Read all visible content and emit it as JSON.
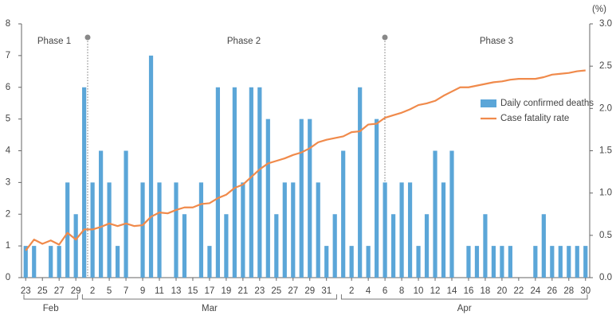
{
  "chart_data": {
    "type": "bar_line",
    "categories": [
      "23",
      null,
      "25",
      null,
      "27",
      null,
      "29",
      null,
      "2",
      null,
      "5",
      null,
      "7",
      null,
      "9",
      null,
      "11",
      null,
      "13",
      null,
      "15",
      null,
      "17",
      null,
      "19",
      null,
      "21",
      null,
      "23",
      null,
      "25",
      null,
      "27",
      null,
      "29",
      null,
      "31",
      null,
      null,
      "2",
      null,
      "4",
      null,
      "6",
      null,
      "8",
      null,
      "10",
      null,
      "12",
      null,
      "14",
      null,
      "16",
      null,
      "18",
      null,
      "20",
      null,
      "22",
      null,
      "24",
      null,
      "26",
      null,
      "28",
      null,
      "30"
    ],
    "x_groups": [
      {
        "label": "Feb",
        "size": 7
      },
      {
        "label": "Mar",
        "size": 31
      },
      {
        "label": "Apr",
        "size": 30
      }
    ],
    "series": [
      {
        "name": "Daily confirmed deaths",
        "type": "bar",
        "color": "#5ba6d8",
        "values": [
          1,
          1,
          0,
          1,
          1,
          3,
          2,
          6,
          3,
          4,
          3,
          1,
          4,
          0,
          3,
          7,
          3,
          0,
          3,
          2,
          0,
          3,
          1,
          6,
          2,
          6,
          3,
          6,
          6,
          5,
          2,
          3,
          3,
          5,
          5,
          3,
          1,
          2,
          4,
          1,
          6,
          1,
          5,
          3,
          2,
          3,
          3,
          1,
          2,
          4,
          3,
          4,
          0,
          1,
          1,
          2,
          1,
          1,
          1,
          0,
          0,
          1,
          2,
          1,
          1,
          1,
          1,
          1
        ]
      },
      {
        "name": "Case fatality rate",
        "type": "line",
        "axis": "y2",
        "color": "#f08a4b",
        "values": [
          0.32,
          0.45,
          0.4,
          0.44,
          0.39,
          0.53,
          0.45,
          0.57,
          0.57,
          0.6,
          0.64,
          0.61,
          0.64,
          0.61,
          0.62,
          0.72,
          0.77,
          0.76,
          0.8,
          0.83,
          0.83,
          0.87,
          0.88,
          0.94,
          0.98,
          1.06,
          1.1,
          1.19,
          1.28,
          1.35,
          1.38,
          1.41,
          1.45,
          1.48,
          1.53,
          1.6,
          1.63,
          1.65,
          1.67,
          1.72,
          1.73,
          1.81,
          1.82,
          1.89,
          1.92,
          1.95,
          1.99,
          2.04,
          2.06,
          2.09,
          2.15,
          2.2,
          2.25,
          2.25,
          2.27,
          2.29,
          2.31,
          2.32,
          2.34,
          2.35,
          2.35,
          2.35,
          2.37,
          2.4,
          2.41,
          2.42,
          2.44,
          2.45
        ]
      }
    ],
    "ylim": [
      0,
      8
    ],
    "yticks": [
      0,
      1,
      2,
      3,
      4,
      5,
      6,
      7,
      8
    ],
    "y2lim": [
      0,
      3
    ],
    "y2label": "(%)",
    "y2ticks": [
      {
        "value": 0,
        "label": "0.0"
      },
      0.5,
      {
        "value": 1,
        "label": "1.0"
      },
      1.5,
      {
        "value": 2,
        "label": "2.0"
      },
      2.5,
      {
        "value": 3,
        "label": "3.0"
      }
    ],
    "annotations": [
      "Phase 1",
      "Phase 2",
      "Phase 3"
    ],
    "legend": "right"
  }
}
